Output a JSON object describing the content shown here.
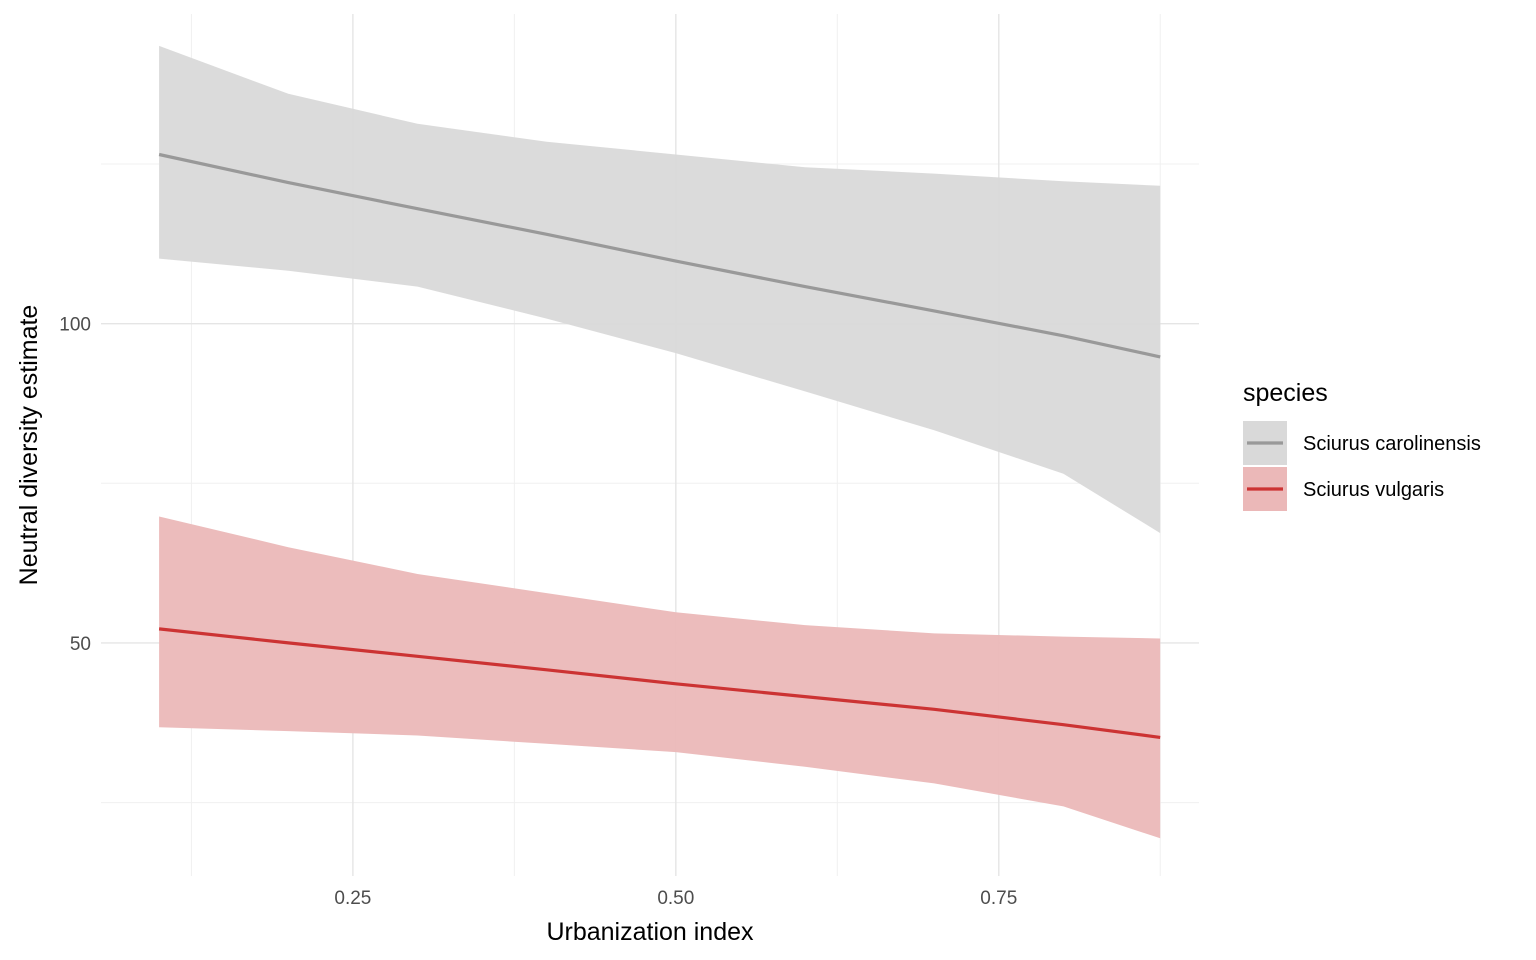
{
  "chart_data": {
    "type": "line",
    "xlabel": "Urbanization index",
    "ylabel": "Neutral diversity estimate",
    "xlim": [
      0.055,
      0.905
    ],
    "ylim": [
      13.5,
      148.5
    ],
    "x_ticks": [
      0.25,
      0.5,
      0.75
    ],
    "x_tick_labels": [
      "0.25",
      "0.50",
      "0.75"
    ],
    "x_minor_ticks": [
      0.125,
      0.375,
      0.625,
      0.875
    ],
    "y_ticks": [
      50,
      100
    ],
    "y_tick_labels": [
      "50",
      "100"
    ],
    "y_minor_ticks": [
      25,
      75,
      125
    ],
    "grid": true,
    "legend": {
      "title": "species",
      "placement": "right"
    },
    "series": [
      {
        "name": "Sciurus carolinensis",
        "color": "#999999",
        "ribbon_color": "#d9d9d9",
        "x": [
          0.1,
          0.2,
          0.3,
          0.4,
          0.5,
          0.6,
          0.7,
          0.8,
          0.875
        ],
        "y": [
          126.5,
          122.1,
          118.0,
          114.0,
          109.8,
          105.8,
          102.0,
          98.1,
          94.8
        ],
        "lower": [
          110.2,
          108.3,
          105.8,
          100.8,
          95.4,
          89.4,
          83.3,
          76.5,
          67.2
        ],
        "upper": [
          143.5,
          136.0,
          131.3,
          128.5,
          126.5,
          124.5,
          123.5,
          122.3,
          121.6
        ]
      },
      {
        "name": "Sciurus vulgaris",
        "color": "#cc3333",
        "ribbon_color": "#ebb8b8",
        "x": [
          0.1,
          0.2,
          0.3,
          0.4,
          0.5,
          0.6,
          0.7,
          0.8,
          0.875
        ],
        "y": [
          52.2,
          50.0,
          47.9,
          45.8,
          43.6,
          41.6,
          39.6,
          37.2,
          35.2
        ],
        "lower": [
          36.8,
          36.2,
          35.5,
          34.2,
          32.9,
          30.6,
          28.0,
          24.4,
          19.4
        ],
        "upper": [
          69.8,
          65.0,
          60.8,
          57.8,
          54.8,
          52.8,
          51.5,
          51.0,
          50.7
        ]
      }
    ]
  }
}
